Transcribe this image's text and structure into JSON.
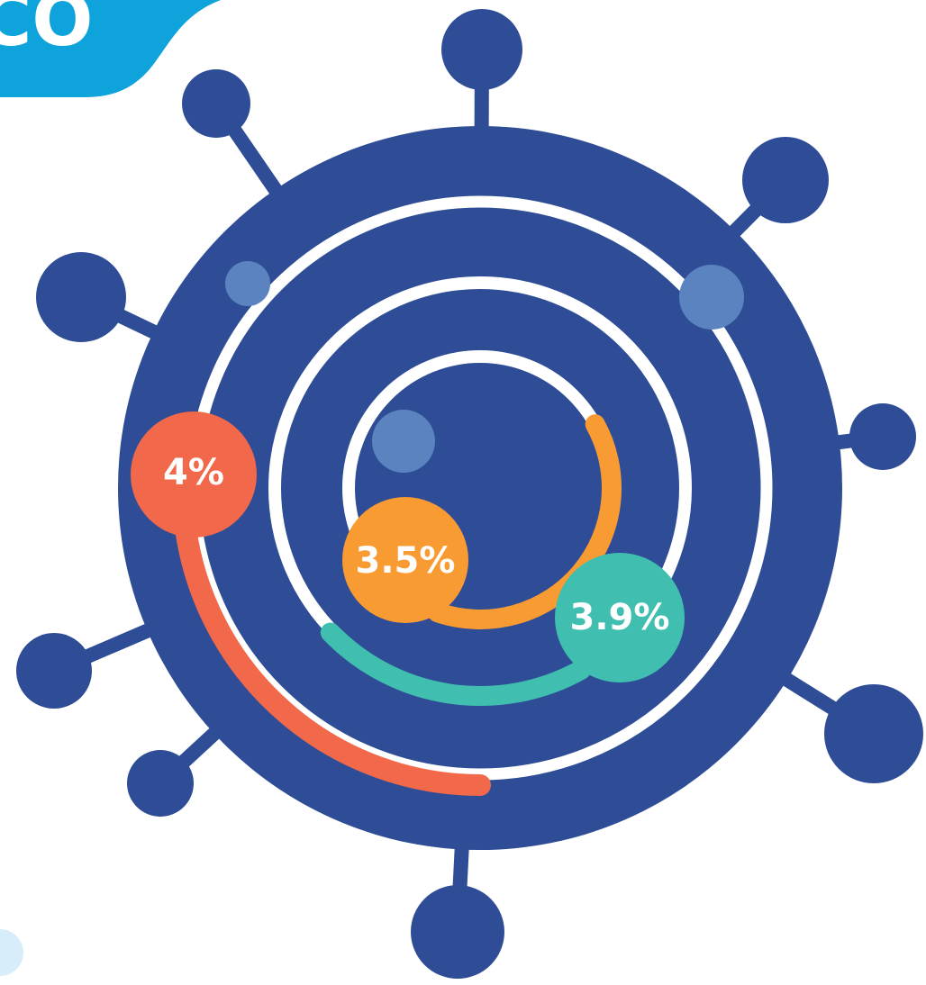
{
  "banner": {
    "text": "CO"
  },
  "labels": [
    {
      "text": "4%"
    },
    {
      "text": "3.5%"
    },
    {
      "text": "3.9%"
    }
  ]
}
